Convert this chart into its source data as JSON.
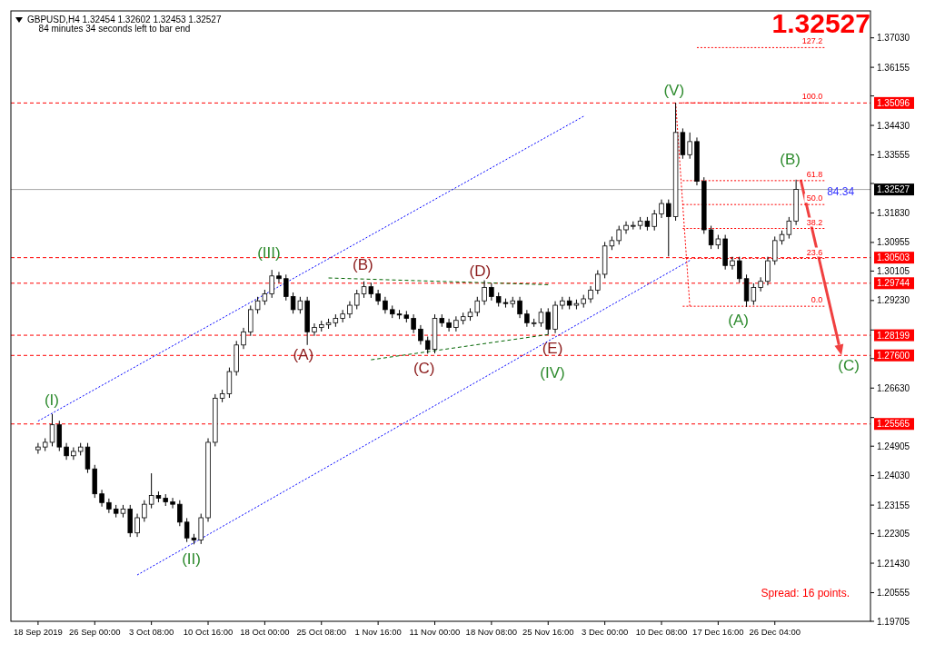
{
  "chart_data": {
    "type": "candlestick",
    "title": "GBPUSD,H4  1.32454 1.32602 1.32453 1.32527",
    "annotations": [
      "84 minutes 34 seconds left to bar end",
      "1.32527",
      "Spread: 16 points.",
      {
        "text": "84:34",
        "y": 1.3246
      },
      "(I)",
      "(II)",
      "(III)",
      "(A)",
      "(B)",
      "(C)",
      "(D)",
      "(E)",
      "(IV)",
      "(V)",
      "(A)",
      "(B)",
      {
        "text": "(C)",
        "y": 1.276
      }
    ],
    "categories": [
      "18 Sep 2019",
      null,
      null,
      null,
      null,
      null,
      null,
      null,
      "26 Sep 00:00",
      null,
      null,
      null,
      null,
      null,
      null,
      null,
      "3 Oct 08:00",
      null,
      null,
      null,
      null,
      null,
      null,
      null,
      "10 Oct 16:00",
      null,
      null,
      null,
      null,
      null,
      null,
      null,
      "18 Oct 00:00",
      null,
      null,
      null,
      null,
      null,
      null,
      null,
      "25 Oct 08:00",
      null,
      null,
      null,
      null,
      null,
      null,
      null,
      "1 Nov 16:00",
      null,
      null,
      null,
      null,
      null,
      null,
      null,
      "11 Nov 00:00",
      null,
      null,
      null,
      null,
      null,
      null,
      null,
      "18 Nov 08:00",
      null,
      null,
      null,
      null,
      null,
      null,
      null,
      "25 Nov 16:00",
      null,
      null,
      null,
      null,
      null,
      null,
      null,
      "3 Dec 00:00",
      null,
      null,
      null,
      null,
      null,
      null,
      null,
      "10 Dec 08:00",
      null,
      null,
      null,
      null,
      null,
      null,
      null,
      "17 Dec 16:00",
      null,
      null,
      null,
      null,
      null,
      null,
      null,
      "26 Dec 04:00",
      null,
      null,
      null,
      null,
      null,
      null,
      null,
      null,
      null,
      null,
      null,
      null,
      null
    ],
    "ohlc": [
      [
        1.248,
        1.25,
        1.2468,
        1.2488
      ],
      [
        1.2488,
        1.2514,
        1.2476,
        1.2502
      ],
      [
        1.2502,
        1.2586,
        1.249,
        1.2554
      ],
      [
        1.2554,
        1.2566,
        1.2476,
        1.2488
      ],
      [
        1.2488,
        1.25,
        1.245,
        1.2462
      ],
      [
        1.2462,
        1.2487,
        1.245,
        1.2475
      ],
      [
        1.2475,
        1.25,
        1.2463,
        1.2488
      ],
      [
        1.2488,
        1.25,
        1.2411,
        1.2423
      ],
      [
        1.2423,
        1.2435,
        1.2337,
        1.2349
      ],
      [
        1.2349,
        1.2361,
        1.2311,
        1.2323
      ],
      [
        1.2323,
        1.2335,
        1.2292,
        1.2304
      ],
      [
        1.2304,
        1.2316,
        1.2279,
        1.2291
      ],
      [
        1.2291,
        1.2316,
        1.2279,
        1.2304
      ],
      [
        1.2304,
        1.2316,
        1.2221,
        1.2233
      ],
      [
        1.2233,
        1.229,
        1.2221,
        1.2278
      ],
      [
        1.2278,
        1.233,
        1.2266,
        1.2318
      ],
      [
        1.2318,
        1.241,
        1.2306,
        1.2344
      ],
      [
        1.2344,
        1.2356,
        1.2324,
        1.2336
      ],
      [
        1.2336,
        1.2348,
        1.2313,
        1.2325
      ],
      [
        1.2325,
        1.2337,
        1.2306,
        1.2318
      ],
      [
        1.2318,
        1.233,
        1.2253,
        1.2265
      ],
      [
        1.2265,
        1.2277,
        1.2206,
        1.2218
      ],
      [
        1.2218,
        1.223,
        1.2199,
        1.2212
      ],
      [
        1.2212,
        1.229,
        1.22,
        1.2278
      ],
      [
        1.2278,
        1.2514,
        1.2266,
        1.2502
      ],
      [
        1.2502,
        1.2645,
        1.249,
        1.2633
      ],
      [
        1.2633,
        1.2658,
        1.2621,
        1.2646
      ],
      [
        1.2646,
        1.2724,
        1.2634,
        1.2712
      ],
      [
        1.2712,
        1.2803,
        1.27,
        1.2791
      ],
      [
        1.2791,
        1.2842,
        1.2779,
        1.283
      ],
      [
        1.283,
        1.2908,
        1.2818,
        1.2896
      ],
      [
        1.2896,
        1.2934,
        1.2884,
        1.2922
      ],
      [
        1.2922,
        1.2955,
        1.291,
        1.2943
      ],
      [
        1.2943,
        1.3014,
        1.2931,
        1.2996
      ],
      [
        1.2996,
        1.3008,
        1.2976,
        1.2988
      ],
      [
        1.2988,
        1.3,
        1.2923,
        1.2935
      ],
      [
        1.2935,
        1.2947,
        1.2884,
        1.2896
      ],
      [
        1.2896,
        1.2934,
        1.2884,
        1.2922
      ],
      [
        1.2922,
        1.2934,
        1.2791,
        1.283
      ],
      [
        1.283,
        1.2855,
        1.2818,
        1.2843
      ],
      [
        1.2843,
        1.2863,
        1.2831,
        1.2851
      ],
      [
        1.2851,
        1.2869,
        1.2839,
        1.2857
      ],
      [
        1.2857,
        1.2882,
        1.2845,
        1.287
      ],
      [
        1.287,
        1.2895,
        1.2858,
        1.2883
      ],
      [
        1.2883,
        1.2921,
        1.2871,
        1.2909
      ],
      [
        1.2909,
        1.2955,
        1.2897,
        1.2943
      ],
      [
        1.2943,
        1.298,
        1.2931,
        1.2964
      ],
      [
        1.2964,
        1.2976,
        1.2931,
        1.2943
      ],
      [
        1.2943,
        1.2955,
        1.291,
        1.2922
      ],
      [
        1.2922,
        1.2934,
        1.2884,
        1.2896
      ],
      [
        1.2896,
        1.2908,
        1.2871,
        1.2883
      ],
      [
        1.2883,
        1.2895,
        1.2868,
        1.288
      ],
      [
        1.288,
        1.2892,
        1.2858,
        1.287
      ],
      [
        1.287,
        1.2882,
        1.2826,
        1.2838
      ],
      [
        1.2838,
        1.285,
        1.2792,
        1.2804
      ],
      [
        1.2804,
        1.2816,
        1.2765,
        1.2778
      ],
      [
        1.2778,
        1.2882,
        1.2766,
        1.287
      ],
      [
        1.287,
        1.2882,
        1.2845,
        1.2857
      ],
      [
        1.2857,
        1.2869,
        1.2831,
        1.2843
      ],
      [
        1.2843,
        1.2876,
        1.2831,
        1.2864
      ],
      [
        1.2864,
        1.2887,
        1.2852,
        1.2875
      ],
      [
        1.2875,
        1.29,
        1.2863,
        1.2888
      ],
      [
        1.2888,
        1.2934,
        1.2876,
        1.2922
      ],
      [
        1.2922,
        1.2983,
        1.291,
        1.2962
      ],
      [
        1.2962,
        1.2974,
        1.2923,
        1.2935
      ],
      [
        1.2935,
        1.2947,
        1.2905,
        1.2917
      ],
      [
        1.2917,
        1.2929,
        1.2902,
        1.2914
      ],
      [
        1.2914,
        1.2934,
        1.2902,
        1.2922
      ],
      [
        1.2922,
        1.2934,
        1.2871,
        1.2883
      ],
      [
        1.2883,
        1.2895,
        1.2845,
        1.2857
      ],
      [
        1.2857,
        1.2869,
        1.2845,
        1.2857
      ],
      [
        1.2857,
        1.29,
        1.2845,
        1.2888
      ],
      [
        1.2888,
        1.29,
        1.2822,
        1.2838
      ],
      [
        1.2838,
        1.2921,
        1.2826,
        1.2909
      ],
      [
        1.2909,
        1.2934,
        1.2897,
        1.2922
      ],
      [
        1.2922,
        1.2934,
        1.2897,
        1.2909
      ],
      [
        1.2909,
        1.2926,
        1.2897,
        1.2914
      ],
      [
        1.2914,
        1.294,
        1.2902,
        1.2928
      ],
      [
        1.2928,
        1.2966,
        1.2916,
        1.2954
      ],
      [
        1.2954,
        1.3013,
        1.2942,
        1.3001
      ],
      [
        1.3001,
        1.3097,
        1.2989,
        1.3085
      ],
      [
        1.3085,
        1.3113,
        1.3073,
        1.3101
      ],
      [
        1.3101,
        1.3145,
        1.3089,
        1.3133
      ],
      [
        1.3133,
        1.3158,
        1.3121,
        1.3146
      ],
      [
        1.3146,
        1.3158,
        1.3134,
        1.3146
      ],
      [
        1.3146,
        1.3171,
        1.3134,
        1.3159
      ],
      [
        1.3159,
        1.3171,
        1.3131,
        1.3143
      ],
      [
        1.3143,
        1.3192,
        1.3131,
        1.318
      ],
      [
        1.318,
        1.3223,
        1.3168,
        1.3211
      ],
      [
        1.3211,
        1.3223,
        1.3054,
        1.3172
      ],
      [
        1.3172,
        1.351,
        1.316,
        1.3422
      ],
      [
        1.3422,
        1.3434,
        1.3344,
        1.3356
      ],
      [
        1.3356,
        1.3422,
        1.3344,
        1.3395
      ],
      [
        1.3395,
        1.3407,
        1.3265,
        1.3277
      ],
      [
        1.3277,
        1.3289,
        1.3121,
        1.3133
      ],
      [
        1.3133,
        1.3145,
        1.3076,
        1.3088
      ],
      [
        1.3088,
        1.3118,
        1.3076,
        1.3106
      ],
      [
        1.3106,
        1.3118,
        1.3015,
        1.3027
      ],
      [
        1.3027,
        1.3053,
        1.3015,
        1.3041
      ],
      [
        1.3041,
        1.3053,
        1.2976,
        1.2988
      ],
      [
        1.2988,
        1.3,
        1.2904,
        1.2922
      ],
      [
        1.2922,
        1.2974,
        1.291,
        1.2962
      ],
      [
        1.2962,
        1.2992,
        1.295,
        1.298
      ],
      [
        1.298,
        1.3053,
        1.2968,
        1.3041
      ],
      [
        1.3041,
        1.3113,
        1.3029,
        1.3101
      ],
      [
        1.3101,
        1.3131,
        1.3089,
        1.3119
      ],
      [
        1.3119,
        1.3171,
        1.3107,
        1.3159
      ],
      [
        1.3159,
        1.3282,
        1.3147,
        1.3253
      ],
      null,
      null,
      null,
      null,
      null,
      null,
      null,
      null,
      null,
      null
    ],
    "color": "#000000",
    "series": [
      {
        "type": "line",
        "color": "#0000ff",
        "line_style": "dotted",
        "values": [
          1.2565,
          null,
          null,
          null,
          null,
          null,
          null,
          null,
          null,
          null,
          null,
          null,
          null,
          null,
          null,
          null,
          null,
          null,
          null,
          null,
          null,
          null,
          null,
          null,
          null,
          null,
          null,
          null,
          null,
          null,
          null,
          null,
          null,
          null,
          null,
          null,
          null,
          null,
          null,
          null,
          null,
          null,
          null,
          null,
          null,
          null,
          null,
          null,
          null,
          null,
          null,
          null,
          null,
          null,
          null,
          null,
          null,
          null,
          null,
          null,
          null,
          null,
          null,
          null,
          null,
          null,
          null,
          null,
          null,
          null,
          null,
          null,
          null,
          null,
          null,
          null,
          null,
          1.347,
          null,
          null,
          null,
          null,
          null,
          null,
          null,
          null,
          null,
          null,
          null,
          null,
          null,
          null,
          null,
          null,
          null,
          null,
          null,
          null,
          null,
          null,
          null,
          null,
          null,
          null,
          null,
          null,
          null,
          null,
          null,
          null,
          null,
          null,
          null,
          null,
          null,
          null,
          null,
          null
        ]
      },
      {
        "type": "line",
        "color": "#0000ff",
        "line_style": "dotted",
        "values": [
          null,
          null,
          null,
          null,
          null,
          null,
          null,
          null,
          null,
          null,
          null,
          null,
          null,
          null,
          1.2108,
          null,
          null,
          null,
          null,
          null,
          null,
          null,
          null,
          null,
          null,
          null,
          null,
          null,
          null,
          null,
          null,
          null,
          null,
          null,
          null,
          null,
          null,
          null,
          null,
          null,
          null,
          null,
          null,
          null,
          null,
          null,
          null,
          null,
          null,
          null,
          null,
          null,
          null,
          null,
          null,
          null,
          null,
          null,
          null,
          null,
          null,
          null,
          null,
          null,
          null,
          null,
          null,
          null,
          null,
          null,
          null,
          null,
          null,
          null,
          null,
          null,
          null,
          null,
          null,
          null,
          null,
          null,
          null,
          null,
          null,
          null,
          null,
          null,
          null,
          null,
          null,
          null,
          1.3042,
          null,
          null,
          null,
          null,
          null,
          null,
          null,
          null,
          null,
          null,
          null,
          null,
          null,
          null,
          null,
          null,
          null,
          null,
          null,
          null,
          null,
          null,
          null,
          null,
          null
        ]
      },
      {
        "type": "line",
        "color": "#006400",
        "line_style": "dashed",
        "values": [
          null,
          null,
          null,
          null,
          null,
          null,
          null,
          null,
          null,
          null,
          null,
          null,
          null,
          null,
          null,
          null,
          null,
          null,
          null,
          null,
          null,
          null,
          null,
          null,
          null,
          null,
          null,
          null,
          null,
          null,
          null,
          null,
          null,
          null,
          null,
          null,
          null,
          null,
          null,
          null,
          null,
          1.299,
          null,
          null,
          null,
          null,
          null,
          null,
          null,
          null,
          null,
          null,
          null,
          null,
          null,
          null,
          null,
          null,
          null,
          null,
          null,
          null,
          null,
          null,
          null,
          null,
          null,
          null,
          null,
          null,
          null,
          null,
          1.297,
          null,
          null,
          null,
          null,
          null,
          null,
          null,
          null,
          null,
          null,
          null,
          null,
          null,
          null,
          null,
          null,
          null,
          null,
          null,
          null,
          null,
          null,
          null,
          null,
          null,
          null,
          null,
          null,
          null,
          null,
          null,
          null,
          null,
          null,
          null,
          null,
          null,
          null,
          null,
          null,
          null,
          null,
          null,
          null,
          null
        ]
      },
      {
        "type": "line",
        "color": "#006400",
        "line_style": "dashed",
        "values": [
          null,
          null,
          null,
          null,
          null,
          null,
          null,
          null,
          null,
          null,
          null,
          null,
          null,
          null,
          null,
          null,
          null,
          null,
          null,
          null,
          null,
          null,
          null,
          null,
          null,
          null,
          null,
          null,
          null,
          null,
          null,
          null,
          null,
          null,
          null,
          null,
          null,
          null,
          null,
          null,
          null,
          null,
          null,
          null,
          null,
          null,
          null,
          1.2747,
          null,
          null,
          null,
          null,
          null,
          null,
          null,
          null,
          null,
          null,
          null,
          null,
          null,
          null,
          null,
          null,
          null,
          null,
          null,
          null,
          null,
          null,
          null,
          null,
          1.2822,
          null,
          null,
          null,
          null,
          null,
          null,
          null,
          null,
          null,
          null,
          null,
          null,
          null,
          null,
          null,
          null,
          null,
          null,
          null,
          null,
          null,
          null,
          null,
          null,
          null,
          null,
          null,
          null,
          null,
          null,
          null,
          null,
          null,
          null,
          null,
          null,
          null,
          null,
          null,
          null,
          null,
          null,
          null,
          null,
          null
        ]
      },
      {
        "type": "line",
        "color": "#ff0000",
        "line_style": "dotted",
        "values": [
          null,
          null,
          null,
          null,
          null,
          null,
          null,
          null,
          null,
          null,
          null,
          null,
          null,
          null,
          null,
          null,
          null,
          null,
          null,
          null,
          null,
          null,
          null,
          null,
          null,
          null,
          null,
          null,
          null,
          null,
          null,
          null,
          null,
          null,
          null,
          null,
          null,
          null,
          null,
          null,
          null,
          null,
          null,
          null,
          null,
          null,
          null,
          null,
          null,
          null,
          null,
          null,
          null,
          null,
          null,
          null,
          null,
          null,
          null,
          null,
          null,
          null,
          null,
          null,
          null,
          null,
          null,
          null,
          null,
          null,
          null,
          null,
          null,
          null,
          null,
          null,
          null,
          null,
          null,
          null,
          null,
          null,
          null,
          null,
          null,
          null,
          null,
          null,
          null,
          null,
          1.351,
          null,
          1.2906,
          null,
          null,
          null,
          null,
          null,
          null,
          null,
          null,
          null,
          null,
          null,
          null,
          null,
          null,
          null,
          null,
          null,
          null,
          null,
          null,
          null,
          null,
          null,
          null,
          null
        ]
      },
      {
        "type": "line",
        "name": "127.2",
        "color": "#ff0000",
        "line_style": "dotted",
        "values": [
          null,
          null,
          null,
          null,
          null,
          null,
          null,
          null,
          null,
          null,
          null,
          null,
          null,
          null,
          null,
          null,
          null,
          null,
          null,
          null,
          null,
          null,
          null,
          null,
          null,
          null,
          null,
          null,
          null,
          null,
          null,
          null,
          null,
          null,
          null,
          null,
          null,
          null,
          null,
          null,
          null,
          null,
          null,
          null,
          null,
          null,
          null,
          null,
          null,
          null,
          null,
          null,
          null,
          null,
          null,
          null,
          null,
          null,
          null,
          null,
          null,
          null,
          null,
          null,
          null,
          null,
          null,
          null,
          null,
          null,
          null,
          null,
          null,
          null,
          null,
          null,
          null,
          null,
          null,
          null,
          null,
          null,
          null,
          null,
          null,
          null,
          null,
          null,
          null,
          null,
          null,
          null,
          null,
          1.3674,
          null,
          null,
          null,
          null,
          null,
          null,
          null,
          null,
          null,
          null,
          null,
          null,
          null,
          null,
          null,
          null,
          null,
          1.3674,
          null,
          null,
          null,
          null,
          null,
          null
        ]
      },
      {
        "type": "line",
        "name": "100.0",
        "color": "#ff0000",
        "line_style": "dotted",
        "values": [
          null,
          null,
          null,
          null,
          null,
          null,
          null,
          null,
          null,
          null,
          null,
          null,
          null,
          null,
          null,
          null,
          null,
          null,
          null,
          null,
          null,
          null,
          null,
          null,
          null,
          null,
          null,
          null,
          null,
          null,
          null,
          null,
          null,
          null,
          null,
          null,
          null,
          null,
          null,
          null,
          null,
          null,
          null,
          null,
          null,
          null,
          null,
          null,
          null,
          null,
          null,
          null,
          null,
          null,
          null,
          null,
          null,
          null,
          null,
          null,
          null,
          null,
          null,
          null,
          null,
          null,
          null,
          null,
          null,
          null,
          null,
          null,
          null,
          null,
          null,
          null,
          null,
          null,
          null,
          null,
          null,
          null,
          null,
          null,
          null,
          null,
          null,
          null,
          null,
          null,
          null,
          1.351,
          null,
          null,
          null,
          null,
          null,
          null,
          null,
          null,
          null,
          null,
          null,
          null,
          null,
          null,
          null,
          null,
          null,
          null,
          null,
          1.351,
          null,
          null,
          null,
          null,
          null,
          null
        ]
      },
      {
        "type": "line",
        "name": "61.8",
        "color": "#ff0000",
        "line_style": "dotted",
        "values": [
          null,
          null,
          null,
          null,
          null,
          null,
          null,
          null,
          null,
          null,
          null,
          null,
          null,
          null,
          null,
          null,
          null,
          null,
          null,
          null,
          null,
          null,
          null,
          null,
          null,
          null,
          null,
          null,
          null,
          null,
          null,
          null,
          null,
          null,
          null,
          null,
          null,
          null,
          null,
          null,
          null,
          null,
          null,
          null,
          null,
          null,
          null,
          null,
          null,
          null,
          null,
          null,
          null,
          null,
          null,
          null,
          null,
          null,
          null,
          null,
          null,
          null,
          null,
          null,
          null,
          null,
          null,
          null,
          null,
          null,
          null,
          null,
          null,
          null,
          null,
          null,
          null,
          null,
          null,
          null,
          null,
          null,
          null,
          null,
          null,
          null,
          null,
          null,
          null,
          null,
          null,
          1.3279,
          null,
          null,
          null,
          null,
          null,
          null,
          null,
          null,
          null,
          null,
          null,
          null,
          null,
          null,
          null,
          null,
          null,
          null,
          null,
          1.3279,
          null,
          null,
          null,
          null,
          null,
          null
        ]
      },
      {
        "type": "line",
        "name": "50.0",
        "color": "#ff0000",
        "line_style": "dotted",
        "values": [
          null,
          null,
          null,
          null,
          null,
          null,
          null,
          null,
          null,
          null,
          null,
          null,
          null,
          null,
          null,
          null,
          null,
          null,
          null,
          null,
          null,
          null,
          null,
          null,
          null,
          null,
          null,
          null,
          null,
          null,
          null,
          null,
          null,
          null,
          null,
          null,
          null,
          null,
          null,
          null,
          null,
          null,
          null,
          null,
          null,
          null,
          null,
          null,
          null,
          null,
          null,
          null,
          null,
          null,
          null,
          null,
          null,
          null,
          null,
          null,
          null,
          null,
          null,
          null,
          null,
          null,
          null,
          null,
          null,
          null,
          null,
          null,
          null,
          null,
          null,
          null,
          null,
          null,
          null,
          null,
          null,
          null,
          null,
          null,
          null,
          null,
          null,
          null,
          null,
          null,
          null,
          1.3208,
          null,
          null,
          null,
          null,
          null,
          null,
          null,
          null,
          null,
          null,
          null,
          null,
          null,
          null,
          null,
          null,
          null,
          null,
          null,
          1.3208,
          null,
          null,
          null,
          null,
          null,
          null
        ]
      },
      {
        "type": "line",
        "name": "38.2",
        "color": "#ff0000",
        "line_style": "dotted",
        "values": [
          null,
          null,
          null,
          null,
          null,
          null,
          null,
          null,
          null,
          null,
          null,
          null,
          null,
          null,
          null,
          null,
          null,
          null,
          null,
          null,
          null,
          null,
          null,
          null,
          null,
          null,
          null,
          null,
          null,
          null,
          null,
          null,
          null,
          null,
          null,
          null,
          null,
          null,
          null,
          null,
          null,
          null,
          null,
          null,
          null,
          null,
          null,
          null,
          null,
          null,
          null,
          null,
          null,
          null,
          null,
          null,
          null,
          null,
          null,
          null,
          null,
          null,
          null,
          null,
          null,
          null,
          null,
          null,
          null,
          null,
          null,
          null,
          null,
          null,
          null,
          null,
          null,
          null,
          null,
          null,
          null,
          null,
          null,
          null,
          null,
          null,
          null,
          null,
          null,
          null,
          null,
          1.3137,
          null,
          null,
          null,
          null,
          null,
          null,
          null,
          null,
          null,
          null,
          null,
          null,
          null,
          null,
          null,
          null,
          null,
          null,
          null,
          1.3137,
          null,
          null,
          null,
          null,
          null,
          null
        ]
      },
      {
        "type": "line",
        "name": "23.6",
        "color": "#ff0000",
        "line_style": "dotted",
        "values": [
          null,
          null,
          null,
          null,
          null,
          null,
          null,
          null,
          null,
          null,
          null,
          null,
          null,
          null,
          null,
          null,
          null,
          null,
          null,
          null,
          null,
          null,
          null,
          null,
          null,
          null,
          null,
          null,
          null,
          null,
          null,
          null,
          null,
          null,
          null,
          null,
          null,
          null,
          null,
          null,
          null,
          null,
          null,
          null,
          null,
          null,
          null,
          null,
          null,
          null,
          null,
          null,
          null,
          null,
          null,
          null,
          null,
          null,
          null,
          null,
          null,
          null,
          null,
          null,
          null,
          null,
          null,
          null,
          null,
          null,
          null,
          null,
          null,
          null,
          null,
          null,
          null,
          null,
          null,
          null,
          null,
          null,
          null,
          null,
          null,
          null,
          null,
          null,
          null,
          null,
          null,
          1.3048,
          null,
          null,
          null,
          null,
          null,
          null,
          null,
          null,
          null,
          null,
          null,
          null,
          null,
          null,
          null,
          null,
          null,
          null,
          null,
          1.3048,
          null,
          null,
          null,
          null,
          null,
          null
        ]
      },
      {
        "type": "line",
        "name": "0.0",
        "color": "#ff0000",
        "line_style": "dotted",
        "values": [
          null,
          null,
          null,
          null,
          null,
          null,
          null,
          null,
          null,
          null,
          null,
          null,
          null,
          null,
          null,
          null,
          null,
          null,
          null,
          null,
          null,
          null,
          null,
          null,
          null,
          null,
          null,
          null,
          null,
          null,
          null,
          null,
          null,
          null,
          null,
          null,
          null,
          null,
          null,
          null,
          null,
          null,
          null,
          null,
          null,
          null,
          null,
          null,
          null,
          null,
          null,
          null,
          null,
          null,
          null,
          null,
          null,
          null,
          null,
          null,
          null,
          null,
          null,
          null,
          null,
          null,
          null,
          null,
          null,
          null,
          null,
          null,
          null,
          null,
          null,
          null,
          null,
          null,
          null,
          null,
          null,
          null,
          null,
          null,
          null,
          null,
          null,
          null,
          null,
          null,
          null,
          1.2906,
          null,
          null,
          null,
          null,
          null,
          null,
          null,
          null,
          null,
          null,
          null,
          null,
          null,
          null,
          null,
          null,
          null,
          null,
          null,
          1.2906,
          null,
          null,
          null,
          null,
          null,
          null
        ]
      }
    ],
    "ref_lines": [
      {
        "axis": "y",
        "value": 1.35096,
        "label": "1.35096",
        "color": "#ff0000",
        "line_style": "dashed"
      },
      {
        "axis": "y",
        "value": 1.30503,
        "label": "1.30503",
        "color": "#ff0000",
        "line_style": "dashed"
      },
      {
        "axis": "y",
        "value": 1.29744,
        "label": "1.29744",
        "color": "#ff0000",
        "line_style": "dashed"
      },
      {
        "axis": "y",
        "value": 1.28199,
        "label": "1.28199",
        "color": "#ff0000",
        "line_style": "dashed"
      },
      {
        "axis": "y",
        "value": 1.276,
        "label": "1.27600",
        "color": "#ff0000",
        "line_style": "dashed"
      },
      {
        "axis": "y",
        "value": 1.25565,
        "label": "1.25565",
        "color": "#ff0000",
        "line_style": "dashed"
      },
      {
        "axis": "y",
        "value": 1.32527,
        "label": "1.32527",
        "color": "#000000",
        "line_style": "solid"
      }
    ],
    "ylim": [
      1.19705,
      1.3783
    ],
    "yticks": [
      {
        "value": 1.3703,
        "label": "1.37030"
      },
      {
        "value": 1.36155,
        "label": "1.36155"
      },
      {
        "value": 1.35305,
        "label": null
      },
      {
        "value": 1.3443,
        "label": "1.34430"
      },
      {
        "value": 1.33555,
        "label": "1.33555"
      },
      {
        "value": 1.32705,
        "label": null
      },
      {
        "value": 1.3183,
        "label": "1.31830"
      },
      {
        "value": 1.30955,
        "label": "1.30955"
      },
      {
        "value": 1.30105,
        "label": "1.30105"
      },
      {
        "value": 1.2923,
        "label": "1.29230"
      },
      {
        "value": 1.28355,
        "label": null
      },
      {
        "value": 1.27505,
        "label": null
      },
      {
        "value": 1.2663,
        "label": "1.26630"
      },
      {
        "value": 1.25755,
        "label": null
      },
      {
        "value": 1.24905,
        "label": "1.24905"
      },
      {
        "value": 1.2403,
        "label": "1.24030"
      },
      {
        "value": 1.23155,
        "label": "1.23155"
      },
      {
        "value": 1.22305,
        "label": "1.22305"
      },
      {
        "value": 1.2143,
        "label": "1.21430"
      },
      {
        "value": 1.20555,
        "label": "1.20555"
      },
      {
        "value": 1.19705,
        "label": "1.19705"
      }
    ],
    "grid": false
  }
}
